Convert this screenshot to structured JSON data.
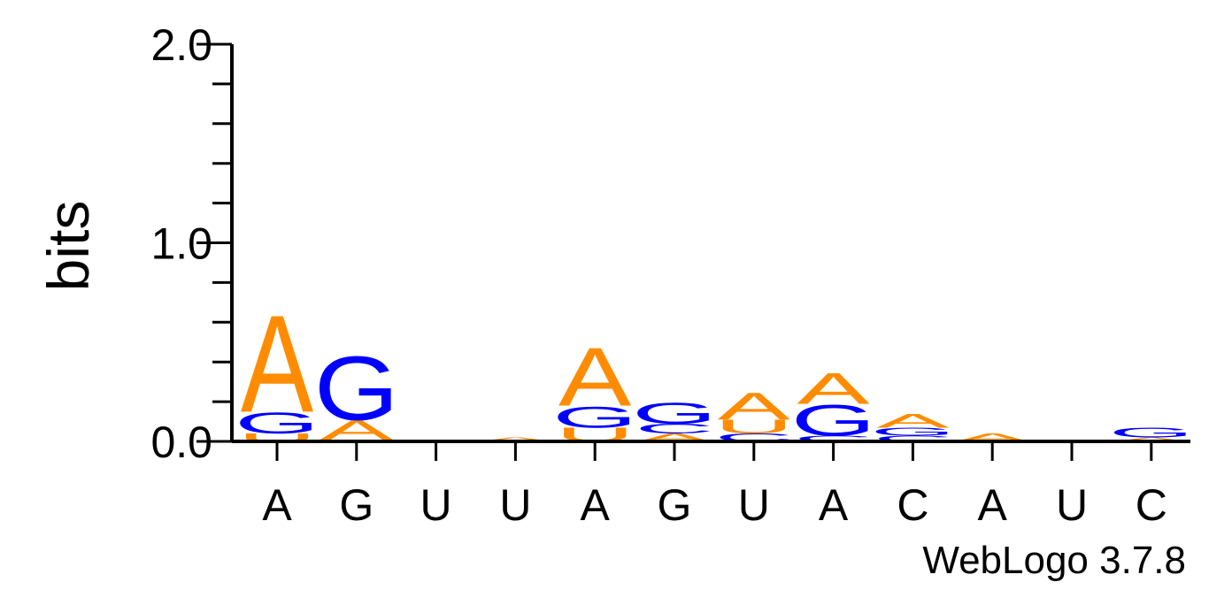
{
  "chart_data": {
    "type": "sequence-logo",
    "ylabel": "bits",
    "ylim": [
      0,
      2
    ],
    "yticks": [
      "0.0",
      "1.0",
      "2.0"
    ],
    "positions": [
      {
        "label": "A",
        "stack": [
          {
            "base": "U",
            "bits": 0.04
          },
          {
            "base": "G",
            "bits": 0.11
          },
          {
            "base": "A",
            "bits": 0.5
          }
        ]
      },
      {
        "label": "G",
        "stack": [
          {
            "base": "U",
            "bits": 0.01
          },
          {
            "base": "A",
            "bits": 0.1
          },
          {
            "base": "G",
            "bits": 0.33
          }
        ]
      },
      {
        "label": "U",
        "stack": []
      },
      {
        "label": "U",
        "stack": [
          {
            "base": "A",
            "bits": 0.02
          }
        ]
      },
      {
        "label": "A",
        "stack": [
          {
            "base": "U",
            "bits": 0.07
          },
          {
            "base": "G",
            "bits": 0.11
          },
          {
            "base": "A",
            "bits": 0.3
          }
        ]
      },
      {
        "label": "G",
        "stack": [
          {
            "base": "A",
            "bits": 0.04
          },
          {
            "base": "C",
            "bits": 0.05
          },
          {
            "base": "G",
            "bits": 0.11
          }
        ]
      },
      {
        "label": "U",
        "stack": [
          {
            "base": "C",
            "bits": 0.04
          },
          {
            "base": "U",
            "bits": 0.07
          },
          {
            "base": "A",
            "bits": 0.14
          }
        ]
      },
      {
        "label": "A",
        "stack": [
          {
            "base": "C",
            "bits": 0.03
          },
          {
            "base": "G",
            "bits": 0.16
          },
          {
            "base": "A",
            "bits": 0.16
          }
        ]
      },
      {
        "label": "C",
        "stack": [
          {
            "base": "C",
            "bits": 0.03
          },
          {
            "base": "G",
            "bits": 0.04
          },
          {
            "base": "A",
            "bits": 0.07
          }
        ]
      },
      {
        "label": "A",
        "stack": [
          {
            "base": "A",
            "bits": 0.04
          }
        ]
      },
      {
        "label": "U",
        "stack": []
      },
      {
        "label": "C",
        "stack": [
          {
            "base": "A",
            "bits": 0.02
          },
          {
            "base": "G",
            "bits": 0.05
          }
        ]
      }
    ]
  },
  "colors": {
    "A": "#ff8c00",
    "U": "#ff8c00",
    "G": "#0000ff",
    "C": "#0000ff"
  },
  "credit": "WebLogo 3.7.8"
}
